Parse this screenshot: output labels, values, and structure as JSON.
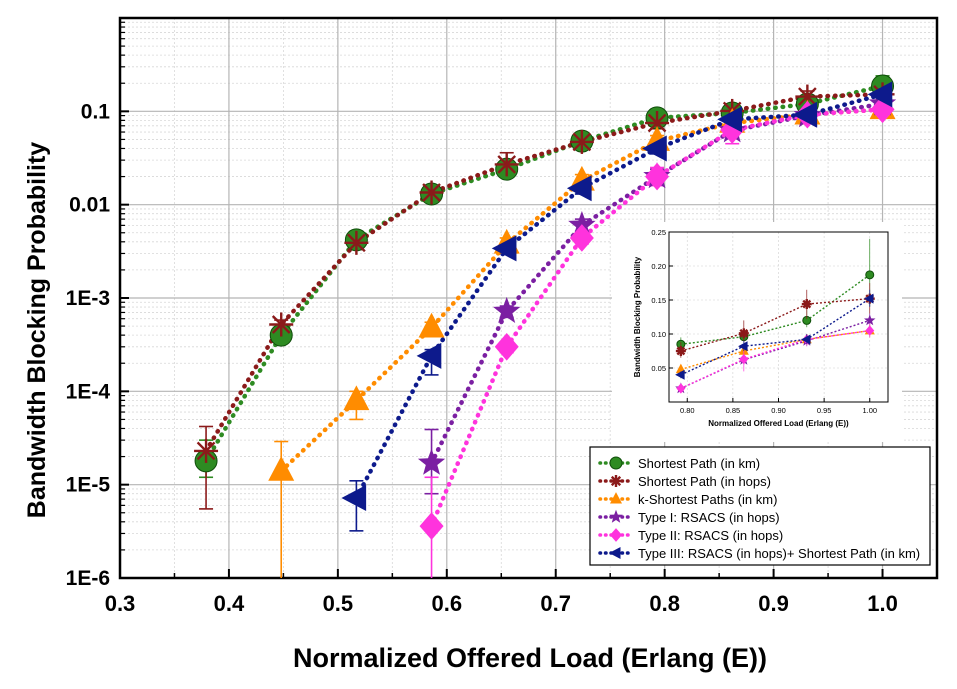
{
  "chart_data": {
    "type": "scatter",
    "xlabel": "Normalized Offered Load (Erlang (E))",
    "ylabel": "Bandwidth Blocking Probability",
    "xlim": [
      0.3,
      1.05
    ],
    "ylim": [
      1e-06,
      1
    ],
    "yscale": "log",
    "grid": true,
    "x_tick_labels": [
      "0.3",
      "0.4",
      "0.5",
      "0.6",
      "0.7",
      "0.8",
      "0.9",
      "1.0"
    ],
    "x_tick_values": [
      0.3,
      0.4,
      0.5,
      0.6,
      0.7,
      0.8,
      0.9,
      1.0
    ],
    "y_tick_labels": [
      "1E-6",
      "1E-5",
      "1E-4",
      "1E-3",
      "0.01",
      "0.1"
    ],
    "y_tick_values": [
      1e-06,
      1e-05,
      0.0001,
      0.001,
      0.01,
      0.1
    ],
    "legend_position": "bottom-right",
    "series": [
      {
        "name": "Shortest Path (in km)",
        "color": "#2e8b22",
        "marker": "circle",
        "x": [
          0.379,
          0.448,
          0.517,
          0.586,
          0.655,
          0.724,
          0.793,
          0.862,
          0.931,
          1.0
        ],
        "y": [
          1.8e-05,
          0.0004,
          0.0042,
          0.013,
          0.024,
          0.048,
          0.085,
          0.096,
          0.12,
          0.187
        ],
        "err_lo": [
          1.2e-05,
          0.00035,
          0.0035,
          0.011,
          0.02,
          0.041,
          0.078,
          0.088,
          0.11,
          0.14
        ],
        "err_hi": [
          3e-05,
          0.00045,
          0.005,
          0.015,
          0.028,
          0.055,
          0.095,
          0.106,
          0.135,
          0.24
        ]
      },
      {
        "name": "Shortest Path (in hops)",
        "color": "#8b1a1a",
        "marker": "asterisk",
        "x": [
          0.379,
          0.448,
          0.517,
          0.586,
          0.655,
          0.724,
          0.793,
          0.862,
          0.931,
          1.0
        ],
        "y": [
          2.3e-05,
          0.00052,
          0.0039,
          0.0135,
          0.027,
          0.047,
          0.075,
          0.101,
          0.144,
          0.152
        ],
        "err_lo": [
          5.5e-06,
          0.00046,
          0.0033,
          0.0118,
          0.022,
          0.04,
          0.065,
          0.085,
          0.122,
          0.13
        ],
        "err_hi": [
          4.2e-05,
          0.00058,
          0.0045,
          0.0152,
          0.036,
          0.055,
          0.088,
          0.12,
          0.165,
          0.175
        ]
      },
      {
        "name": "k-Shortest Paths (in km)",
        "color": "#ff8c00",
        "marker": "triangle",
        "x": [
          0.448,
          0.517,
          0.586,
          0.655,
          0.724,
          0.793,
          0.862,
          0.931,
          1.0
        ],
        "y": [
          1.4e-05,
          8e-05,
          0.00048,
          0.0038,
          0.018,
          0.048,
          0.075,
          0.092,
          0.105
        ],
        "err_lo": [
          1e-06,
          5e-05,
          0.00042,
          0.0033,
          0.015,
          0.042,
          0.066,
          0.084,
          0.095
        ],
        "err_hi": [
          2.9e-05,
          0.0001,
          0.00055,
          0.0044,
          0.021,
          0.055,
          0.085,
          0.1,
          0.115
        ]
      },
      {
        "name": "Type I: RSACS (in hops)",
        "color": "#7b1fa2",
        "marker": "star",
        "x": [
          0.586,
          0.655,
          0.724,
          0.793,
          0.862,
          0.931,
          1.0
        ],
        "y": [
          1.7e-05,
          0.00072,
          0.006,
          0.02,
          0.062,
          0.09,
          0.12
        ],
        "err_lo": [
          8e-06,
          0.00062,
          0.0052,
          0.017,
          0.055,
          0.082,
          0.11
        ],
        "err_hi": [
          3.9e-05,
          0.00082,
          0.007,
          0.024,
          0.07,
          0.098,
          0.13
        ]
      },
      {
        "name": "Type II: RSACS (in hops)",
        "color": "#ff33dd",
        "marker": "diamond",
        "x": [
          0.586,
          0.655,
          0.724,
          0.793,
          0.862,
          0.931,
          1.0
        ],
        "y": [
          3.6e-06,
          0.0003,
          0.0044,
          0.02,
          0.063,
          0.092,
          0.105
        ],
        "err_lo": [
          1e-06,
          0.00026,
          0.0038,
          0.016,
          0.045,
          0.083,
          0.095
        ],
        "err_hi": [
          1.2e-05,
          0.00034,
          0.005,
          0.025,
          0.078,
          0.1,
          0.115
        ]
      },
      {
        "name": "Type III: RSACS (in hops)+ Shortest Path (in km)",
        "color": "#0d1a8c",
        "marker": "left-triangle",
        "x": [
          0.517,
          0.586,
          0.655,
          0.724,
          0.793,
          0.862,
          0.931,
          1.0
        ],
        "y": [
          7.2e-06,
          0.00024,
          0.0034,
          0.015,
          0.04,
          0.082,
          0.092,
          0.152
        ],
        "err_lo": [
          3.2e-06,
          0.00015,
          0.003,
          0.013,
          0.035,
          0.075,
          0.085,
          0.14
        ],
        "err_hi": [
          1.1e-05,
          0.00028,
          0.0038,
          0.017,
          0.045,
          0.09,
          0.1,
          0.165
        ]
      }
    ],
    "inset": {
      "xlabel": "Normalized Offered Load (Erlang (E))",
      "ylabel": "Bandwidth Blocking Probability",
      "xlim": [
        0.78,
        1.02
      ],
      "ylim": [
        0,
        0.25
      ],
      "x_tick_labels": [
        "0.80",
        "0.85",
        "0.90",
        "0.95",
        "1.00"
      ],
      "x_tick_values": [
        0.8,
        0.85,
        0.9,
        0.95,
        1.0
      ],
      "y_tick_labels": [
        "0.05",
        "0.10",
        "0.15",
        "0.20",
        "0.25"
      ],
      "y_tick_values": [
        0.05,
        0.1,
        0.15,
        0.2,
        0.25
      ],
      "x": [
        0.793,
        0.862,
        0.931,
        1.0
      ]
    }
  }
}
